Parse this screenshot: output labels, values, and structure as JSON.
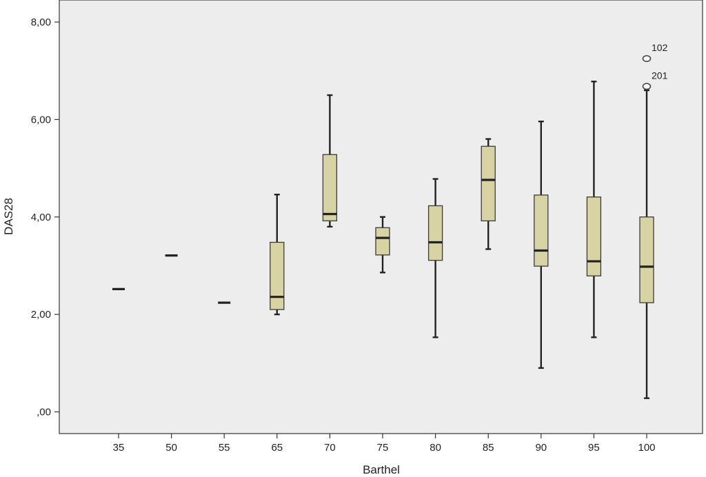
{
  "chart_data": {
    "type": "boxplot",
    "title": "",
    "xlabel": "Barthel",
    "ylabel": "DAS28",
    "ylim": [
      -0.4,
      8.4
    ],
    "yticks": [
      0,
      2,
      4,
      6,
      8
    ],
    "ytick_labels": [
      ",00",
      "2,00",
      "4,00",
      "6,00",
      "8,00"
    ],
    "grid": false,
    "colors": {
      "box_fill": "#d8d3a2",
      "plot_bg": "#ededed",
      "line": "#222222",
      "outlier_fill": "#ffffff"
    },
    "categories": [
      "35",
      "50",
      "55",
      "65",
      "70",
      "75",
      "80",
      "85",
      "90",
      "95",
      "100"
    ],
    "boxes": [
      {
        "category": "35",
        "min": 2.52,
        "q1": 2.52,
        "median": 2.52,
        "q3": 2.52,
        "max": 2.52
      },
      {
        "category": "50",
        "min": 3.21,
        "q1": 3.21,
        "median": 3.21,
        "q3": 3.21,
        "max": 3.21
      },
      {
        "category": "55",
        "min": 2.24,
        "q1": 2.24,
        "median": 2.24,
        "q3": 2.24,
        "max": 2.24
      },
      {
        "category": "65",
        "min": 2.0,
        "q1": 2.1,
        "median": 2.36,
        "q3": 3.48,
        "max": 4.46
      },
      {
        "category": "70",
        "min": 3.8,
        "q1": 3.92,
        "median": 4.06,
        "q3": 5.28,
        "max": 6.5
      },
      {
        "category": "75",
        "min": 2.86,
        "q1": 3.22,
        "median": 3.57,
        "q3": 3.78,
        "max": 4.0
      },
      {
        "category": "80",
        "min": 1.53,
        "q1": 3.11,
        "median": 3.48,
        "q3": 4.23,
        "max": 4.78
      },
      {
        "category": "85",
        "min": 3.34,
        "q1": 3.92,
        "median": 4.76,
        "q3": 5.45,
        "max": 5.6
      },
      {
        "category": "90",
        "min": 0.9,
        "q1": 2.99,
        "median": 3.31,
        "q3": 4.45,
        "max": 5.96
      },
      {
        "category": "95",
        "min": 1.53,
        "q1": 2.79,
        "median": 3.09,
        "q3": 4.41,
        "max": 6.78
      },
      {
        "category": "100",
        "min": 0.28,
        "q1": 2.24,
        "median": 2.98,
        "q3": 4.0,
        "max": 6.6
      }
    ],
    "outliers": [
      {
        "category": "100",
        "value": 7.25,
        "label": "102"
      },
      {
        "category": "100",
        "value": 6.68,
        "label": "201"
      }
    ]
  }
}
